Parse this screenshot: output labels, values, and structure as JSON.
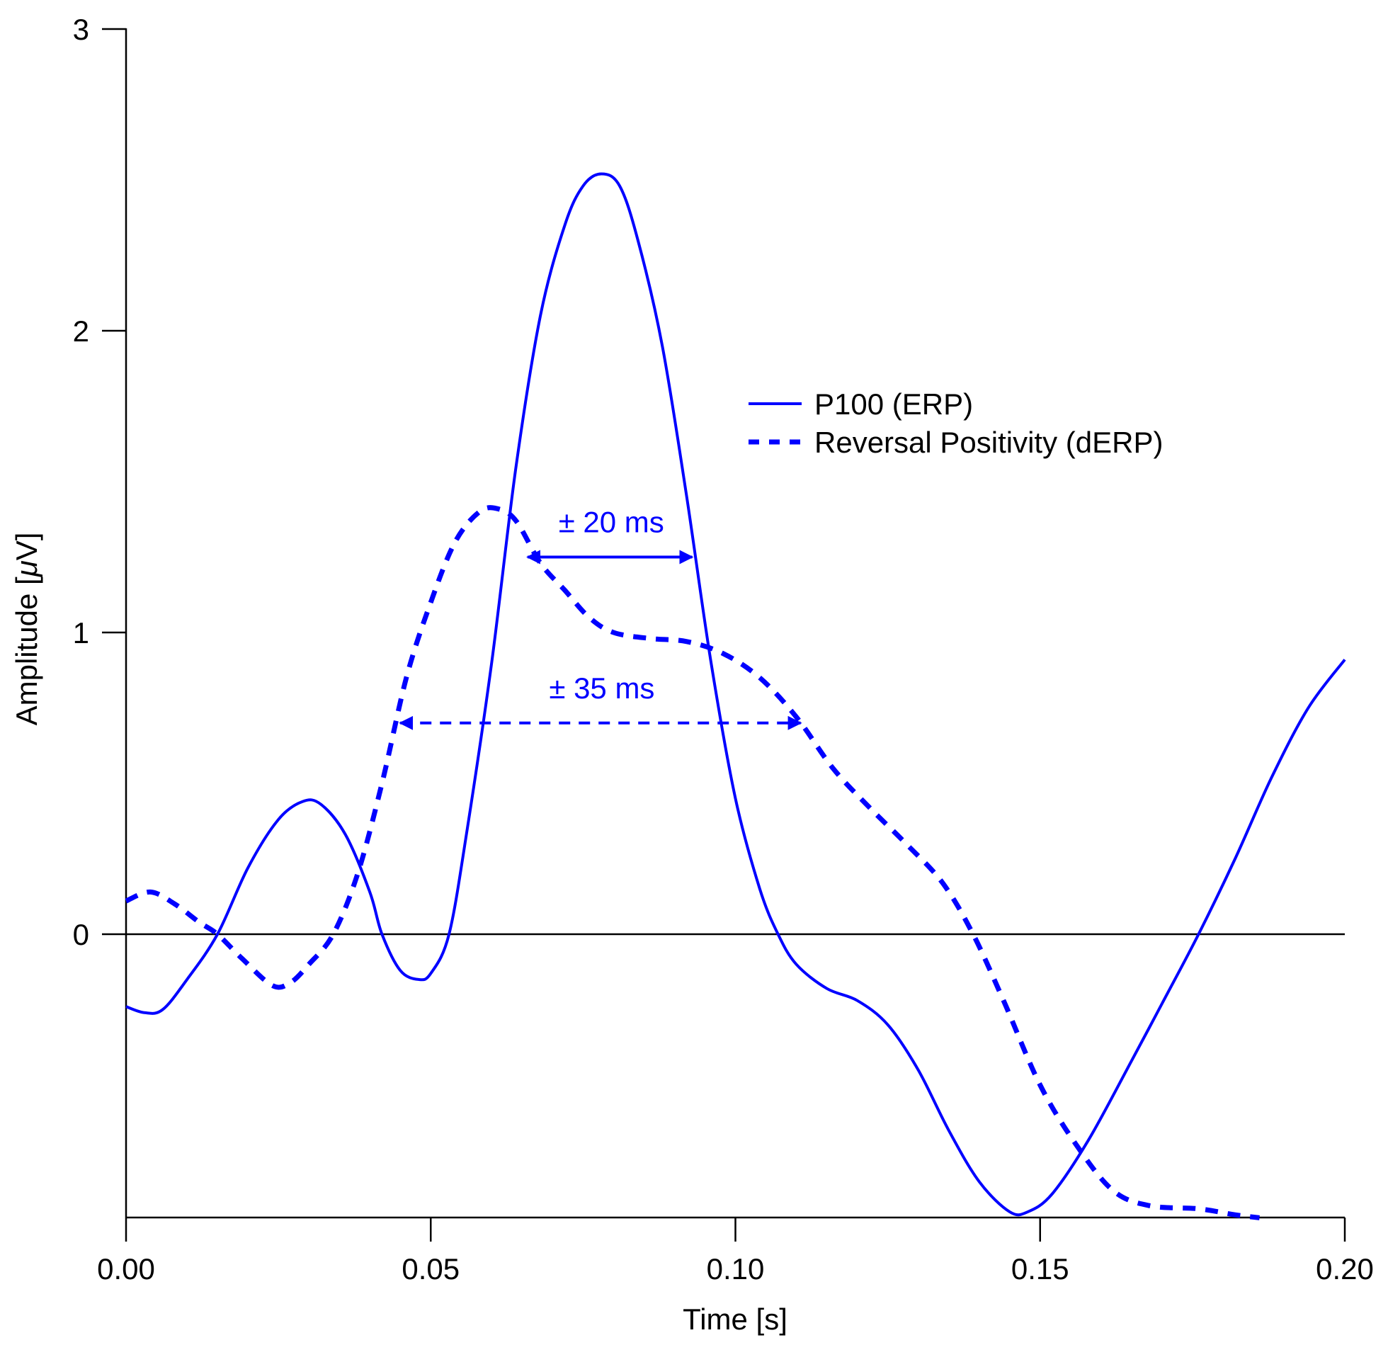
{
  "chart_data": {
    "type": "line",
    "title": "",
    "xlabel": "Time [s]",
    "ylabel_prefix": "Amplitude [",
    "ylabel_unit_symbol": "μ",
    "ylabel_suffix": "V]",
    "ylabel": "Amplitude [μV]",
    "xlim": [
      0.0,
      0.2
    ],
    "ylim": [
      -0.94,
      3
    ],
    "x_ticks": [
      0.0,
      0.05,
      0.1,
      0.15,
      0.2
    ],
    "x_tick_labels": [
      "0.00",
      "0.05",
      "0.10",
      "0.15",
      "0.20"
    ],
    "y_ticks": [
      0,
      1,
      2,
      3
    ],
    "y_tick_labels": [
      "0",
      "1",
      "2",
      "3"
    ],
    "grid": false,
    "zero_line": true,
    "legend_position": "upper right (inside plot)",
    "series": [
      {
        "name": "P100 (ERP)",
        "style": "solid",
        "color": "#0000ff",
        "x": [
          0.0,
          0.003,
          0.006,
          0.01,
          0.015,
          0.02,
          0.025,
          0.029,
          0.032,
          0.036,
          0.04,
          0.042,
          0.045,
          0.048,
          0.05,
          0.053,
          0.056,
          0.06,
          0.064,
          0.068,
          0.072,
          0.075,
          0.078,
          0.081,
          0.084,
          0.088,
          0.092,
          0.096,
          0.1,
          0.104,
          0.107,
          0.11,
          0.115,
          0.12,
          0.125,
          0.13,
          0.135,
          0.14,
          0.145,
          0.148,
          0.152,
          0.158,
          0.165,
          0.17,
          0.176,
          0.182,
          0.188,
          0.194,
          0.2
        ],
        "values": [
          -0.24,
          -0.26,
          -0.25,
          -0.15,
          0.0,
          0.22,
          0.38,
          0.44,
          0.43,
          0.33,
          0.14,
          0.0,
          -0.12,
          -0.15,
          -0.13,
          0.0,
          0.35,
          0.9,
          1.55,
          2.05,
          2.35,
          2.48,
          2.52,
          2.48,
          2.3,
          1.95,
          1.45,
          0.9,
          0.45,
          0.15,
          0.0,
          -0.1,
          -0.18,
          -0.22,
          -0.3,
          -0.45,
          -0.65,
          -0.82,
          -0.92,
          -0.92,
          -0.86,
          -0.68,
          -0.42,
          -0.23,
          0.0,
          0.25,
          0.52,
          0.75,
          0.91
        ]
      },
      {
        "name": "Reversal Positivity (dERP)",
        "style": "dashed",
        "color": "#0000ff",
        "x": [
          0.0,
          0.004,
          0.008,
          0.012,
          0.015,
          0.019,
          0.024,
          0.027,
          0.03,
          0.034,
          0.038,
          0.042,
          0.046,
          0.05,
          0.054,
          0.058,
          0.061,
          0.064,
          0.068,
          0.072,
          0.076,
          0.08,
          0.086,
          0.092,
          0.098,
          0.104,
          0.11,
          0.116,
          0.122,
          0.128,
          0.134,
          0.139,
          0.144,
          0.15,
          0.156,
          0.162,
          0.168,
          0.176,
          0.182,
          0.186
        ],
        "values": [
          0.11,
          0.14,
          0.1,
          0.04,
          0.0,
          -0.08,
          -0.17,
          -0.16,
          -0.1,
          0.0,
          0.2,
          0.5,
          0.85,
          1.1,
          1.3,
          1.4,
          1.41,
          1.37,
          1.23,
          1.14,
          1.05,
          1.0,
          0.98,
          0.97,
          0.93,
          0.85,
          0.72,
          0.55,
          0.42,
          0.3,
          0.17,
          0.0,
          -0.22,
          -0.5,
          -0.7,
          -0.85,
          -0.9,
          -0.91,
          -0.93,
          -0.94
        ]
      }
    ],
    "annotations": [
      {
        "text": "± 20 ms",
        "style": "solid double-arrow",
        "x_from": 0.0659,
        "x_to": 0.0929,
        "y": 1.25,
        "color": "#0000ff"
      },
      {
        "text": "± 35 ms",
        "style": "dashed double-arrow",
        "x_from": 0.045,
        "x_to": 0.1107,
        "y": 0.7,
        "color": "#0000ff"
      }
    ]
  },
  "colors": {
    "series": "#0000ff",
    "axis": "#000000",
    "background": "#ffffff"
  }
}
